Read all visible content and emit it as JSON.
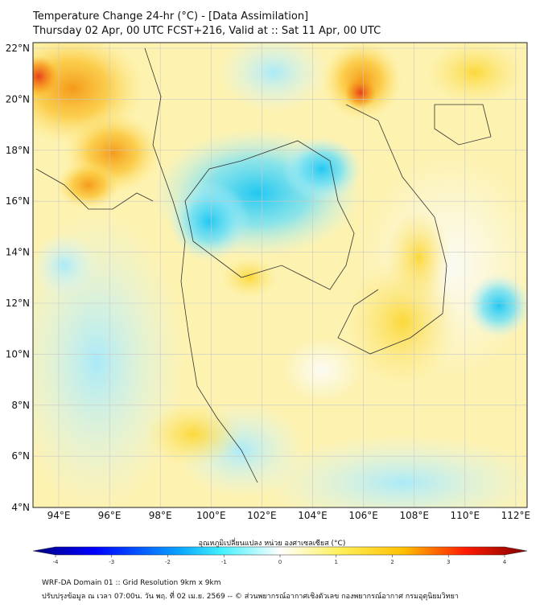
{
  "header": {
    "title": "Temperature Change 24-hr (°C) - [Data Assimilation]",
    "subtitle": "Thursday 02 Apr, 00 UTC FCST+216, Valid at :: Sat 11 Apr, 00 UTC"
  },
  "map": {
    "lat_labels": [
      "22°N",
      "20°N",
      "18°N",
      "16°N",
      "14°N",
      "12°N",
      "10°N",
      "8°N",
      "6°N",
      "4°N"
    ],
    "lon_labels": [
      "94°E",
      "96°E",
      "98°E",
      "100°E",
      "102°E",
      "104°E",
      "106°E",
      "108°E",
      "110°E",
      "112°E"
    ]
  },
  "colorbar": {
    "title": "อุณหภูมิเปลี่ยนแปลง หน่วย องศาเซลเซียส (°C)",
    "ticks": [
      "-4",
      "-3",
      "-2",
      "-1",
      "0",
      "1",
      "2",
      "3",
      "4"
    ],
    "colors": [
      "#00007f",
      "#0000ff",
      "#00bfff",
      "#40f0ff",
      "#ffffff",
      "#fff05a",
      "#ffaa00",
      "#ff1a00",
      "#7f0000"
    ]
  },
  "footer": {
    "line1": "WRF-DA Domain 01 :: Grid Resolution 9km x 9km",
    "line2": "ปรับปรุงข้อมูล ณ เวลา 07:00น. วัน พฤ. ที่ 02 เม.ย. 2569 -- © ส่วนพยากรณ์อากาศเชิงตัวเลข กองพยากรณ์อากาศ กรมอุตุนิยมวิทยา"
  }
}
